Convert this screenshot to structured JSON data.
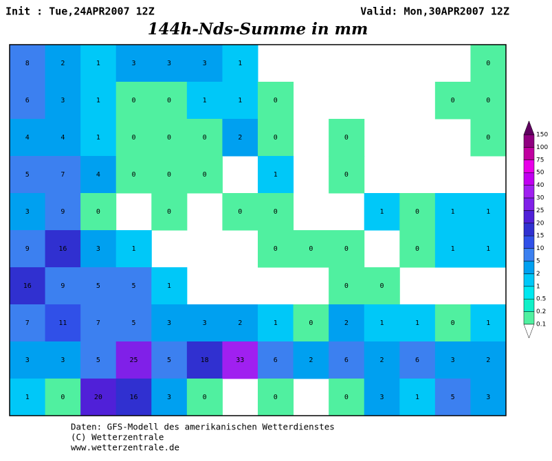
{
  "header": {
    "init": "Init : Tue,24APR2007 12Z",
    "valid": "Valid: Mon,30APR2007 12Z",
    "title": "144h-Nds-Summe in mm"
  },
  "colorbar": {
    "levels": [
      0.1,
      0.2,
      0.5,
      1,
      2,
      5,
      10,
      15,
      20,
      25,
      30,
      40,
      50,
      75,
      100,
      150
    ],
    "colors": [
      "#50f0a0",
      "#10f0c8",
      "#00e8f0",
      "#00c8f8",
      "#00a0f0",
      "#3c80f0",
      "#3050e8",
      "#3030d0",
      "#5020d8",
      "#8020e8",
      "#a020f0",
      "#c000f0",
      "#e800e8",
      "#c000a0",
      "#900080",
      "#600060"
    ]
  },
  "grid": {
    "rows": [
      [
        8,
        2,
        1,
        3,
        3,
        3,
        1,
        null,
        null,
        null,
        null,
        null,
        null,
        0
      ],
      [
        6,
        3,
        1,
        0,
        0,
        1,
        1,
        0,
        null,
        null,
        null,
        null,
        0,
        0
      ],
      [
        4,
        4,
        1,
        0,
        0,
        0,
        2,
        0,
        null,
        0,
        null,
        null,
        null,
        0
      ],
      [
        5,
        7,
        4,
        0,
        0,
        0,
        null,
        1,
        null,
        0,
        null,
        null,
        null,
        null
      ],
      [
        3,
        9,
        0,
        null,
        0,
        null,
        0,
        0,
        null,
        null,
        1,
        0,
        1,
        1
      ],
      [
        9,
        16,
        3,
        1,
        null,
        null,
        null,
        0,
        0,
        0,
        null,
        0,
        1,
        1
      ],
      [
        16,
        9,
        5,
        5,
        1,
        null,
        null,
        null,
        null,
        0,
        0,
        null,
        null,
        null
      ],
      [
        7,
        11,
        7,
        5,
        3,
        3,
        2,
        1,
        0,
        2,
        1,
        1,
        0,
        1
      ],
      [
        3,
        3,
        5,
        25,
        5,
        18,
        33,
        6,
        2,
        6,
        2,
        6,
        3,
        2
      ],
      [
        1,
        0,
        20,
        16,
        3,
        0,
        null,
        0,
        null,
        0,
        3,
        1,
        5,
        3
      ]
    ]
  },
  "footer": [
    "Daten: GFS-Modell des amerikanischen Wetterdienstes",
    "(C) Wetterzentrale",
    "www.wetterzentrale.de"
  ]
}
